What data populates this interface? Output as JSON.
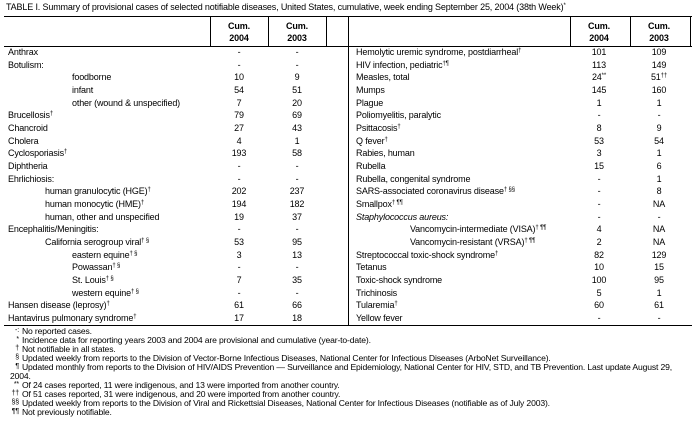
{
  "title": "TABLE I. Summary of provisional cases of selected notifiable diseases, United States, cumulative, week ending September 25, 2004 (38th Week)",
  "title_sup": "*",
  "tables": [
    {
      "columns": [
        {
          "line1": "Cum.",
          "line2": "2004"
        },
        {
          "line1": "Cum.",
          "line2": "2003"
        }
      ],
      "rows": [
        {
          "name": "Anthrax",
          "level": 0,
          "values": [
            "-",
            "-"
          ]
        },
        {
          "name": "Botulism:",
          "level": 0,
          "values": [
            "-",
            "-"
          ]
        },
        {
          "name": "foodborne",
          "level": 2,
          "values": [
            "10",
            "9"
          ]
        },
        {
          "name": "infant",
          "level": 2,
          "values": [
            "54",
            "51"
          ]
        },
        {
          "name": "other (wound & unspecified)",
          "level": 2,
          "values": [
            "7",
            "20"
          ]
        },
        {
          "name": "Brucellosis",
          "sup": "†",
          "level": 0,
          "values": [
            "79",
            "69"
          ]
        },
        {
          "name": "Chancroid",
          "level": 0,
          "values": [
            "27",
            "43"
          ]
        },
        {
          "name": "Cholera",
          "level": 0,
          "values": [
            "4",
            "1"
          ]
        },
        {
          "name": "Cyclosporiasis",
          "sup": "†",
          "level": 0,
          "values": [
            "193",
            "58"
          ]
        },
        {
          "name": "Diphtheria",
          "level": 0,
          "values": [
            "-",
            "-"
          ]
        },
        {
          "name": "Ehrlichiosis:",
          "level": 0,
          "values": [
            "-",
            "-"
          ]
        },
        {
          "name": "human granulocytic (HGE)",
          "sup": "†",
          "level": 1,
          "values": [
            "202",
            "237"
          ]
        },
        {
          "name": "human monocytic (HME)",
          "sup": "†",
          "level": 1,
          "values": [
            "194",
            "182"
          ]
        },
        {
          "name": "human, other and unspecified",
          "level": 1,
          "values": [
            "19",
            "37"
          ]
        },
        {
          "name": "Encephalitis/Meningitis:",
          "level": 0,
          "values": [
            "-",
            "-"
          ]
        },
        {
          "name": "California serogroup viral",
          "sup": "† §",
          "level": 1,
          "values": [
            "53",
            "95"
          ]
        },
        {
          "name": "eastern equine",
          "sup": "† §",
          "level": 2,
          "values": [
            "3",
            "13"
          ]
        },
        {
          "name": "Powassan",
          "sup": "† §",
          "level": 2,
          "values": [
            "-",
            "-"
          ]
        },
        {
          "name": "St. Louis",
          "sup": "† §",
          "level": 2,
          "values": [
            "7",
            "35"
          ]
        },
        {
          "name": "western equine",
          "sup": "† §",
          "level": 2,
          "values": [
            "-",
            "-"
          ]
        },
        {
          "name": "Hansen disease (leprosy)",
          "sup": "†",
          "level": 0,
          "values": [
            "61",
            "66"
          ]
        },
        {
          "name": "Hantavirus pulmonary syndrome",
          "sup": "†",
          "level": 0,
          "values": [
            "17",
            "18"
          ]
        }
      ]
    },
    {
      "columns": [
        {
          "line1": "Cum.",
          "line2": "2004"
        },
        {
          "line1": "Cum.",
          "line2": "2003"
        }
      ],
      "rows": [
        {
          "name": "Hemolytic uremic syndrome, postdiarrheal",
          "sup": "†",
          "level": 0,
          "values": [
            "101",
            "109"
          ]
        },
        {
          "name": "HIV infection, pediatric",
          "sup": "†¶",
          "level": 0,
          "values": [
            "113",
            "149"
          ]
        },
        {
          "name": "Measles, total",
          "level": 0,
          "values": [
            {
              "text": "24",
              "sup": "**"
            },
            {
              "text": "51",
              "sup": "††"
            }
          ]
        },
        {
          "name": "Mumps",
          "level": 0,
          "values": [
            "145",
            "160"
          ]
        },
        {
          "name": "Plague",
          "level": 0,
          "values": [
            "1",
            "1"
          ]
        },
        {
          "name": "Poliomyelitis, paralytic",
          "level": 0,
          "values": [
            "-",
            "-"
          ]
        },
        {
          "name": "Psittacosis",
          "sup": "†",
          "level": 0,
          "values": [
            "8",
            "9"
          ]
        },
        {
          "name": "Q fever",
          "sup": "†",
          "level": 0,
          "values": [
            "53",
            "54"
          ]
        },
        {
          "name": "Rabies, human",
          "level": 0,
          "values": [
            "3",
            "1"
          ]
        },
        {
          "name": "Rubella",
          "level": 0,
          "values": [
            "15",
            "6"
          ]
        },
        {
          "name": "Rubella, congenital syndrome",
          "level": 0,
          "values": [
            "-",
            "1"
          ]
        },
        {
          "name": "SARS-associated coronavirus disease",
          "sup": "† §§",
          "level": 0,
          "values": [
            "-",
            "8"
          ]
        },
        {
          "name": "Smallpox",
          "sup": "† ¶¶",
          "level": 0,
          "values": [
            "-",
            "NA"
          ]
        },
        {
          "name": "Staphylococcus aureus:",
          "italic": true,
          "level": 0,
          "values": [
            "-",
            "-"
          ]
        },
        {
          "name": "Vancomycin-intermediate (VISA)",
          "sup": "† ¶¶",
          "level": 2,
          "values": [
            "4",
            "NA"
          ]
        },
        {
          "name": "Vancomycin-resistant (VRSA)",
          "sup": "† ¶¶",
          "level": 2,
          "values": [
            "2",
            "NA"
          ]
        },
        {
          "name": "Streptococcal toxic-shock syndrome",
          "sup": "†",
          "level": 0,
          "values": [
            "82",
            "129"
          ]
        },
        {
          "name": "Tetanus",
          "level": 0,
          "values": [
            "10",
            "15"
          ]
        },
        {
          "name": "Toxic-shock syndrome",
          "level": 0,
          "values": [
            "100",
            "95"
          ]
        },
        {
          "name": "Trichinosis",
          "level": 0,
          "values": [
            "5",
            "1"
          ]
        },
        {
          "name": "Tularemia",
          "sup": "†",
          "level": 0,
          "values": [
            "60",
            "61"
          ]
        },
        {
          "name": "Yellow fever",
          "level": 0,
          "values": [
            "-",
            "-"
          ]
        }
      ]
    }
  ],
  "footnotes": [
    {
      "symbol": "-:",
      "text": "No reported cases."
    },
    {
      "symbol": "*",
      "text": "Incidence data for reporting years 2003 and 2004 are provisional and cumulative (year-to-date)."
    },
    {
      "symbol": "†",
      "text": "Not notifiable in all states."
    },
    {
      "symbol": "§",
      "text": "Updated weekly from reports to the Division of Vector-Borne Infectious Diseases, National Center for Infectious Diseases (ArboNet Surveillance)."
    },
    {
      "symbol": "¶",
      "text": "Updated monthly from reports to the Division of HIV/AIDS Prevention — Surveillance and Epidemiology, National Center for HIV, STD, and TB Prevention. Last update August 29, 2004."
    },
    {
      "symbol": "**",
      "text": "Of 24 cases reported, 11 were indigenous, and 13 were imported from another country."
    },
    {
      "symbol": "††",
      "text": "Of 51 cases reported, 31 were indigenous, and 20 were imported from another country."
    },
    {
      "symbol": "§§",
      "text": "Updated weekly from reports to the Division of Viral and Rickettsial Diseases, National Center for Infectious Diseases (notifiable as of July 2003)."
    },
    {
      "symbol": "¶¶",
      "text": "Not previously notifiable."
    }
  ]
}
